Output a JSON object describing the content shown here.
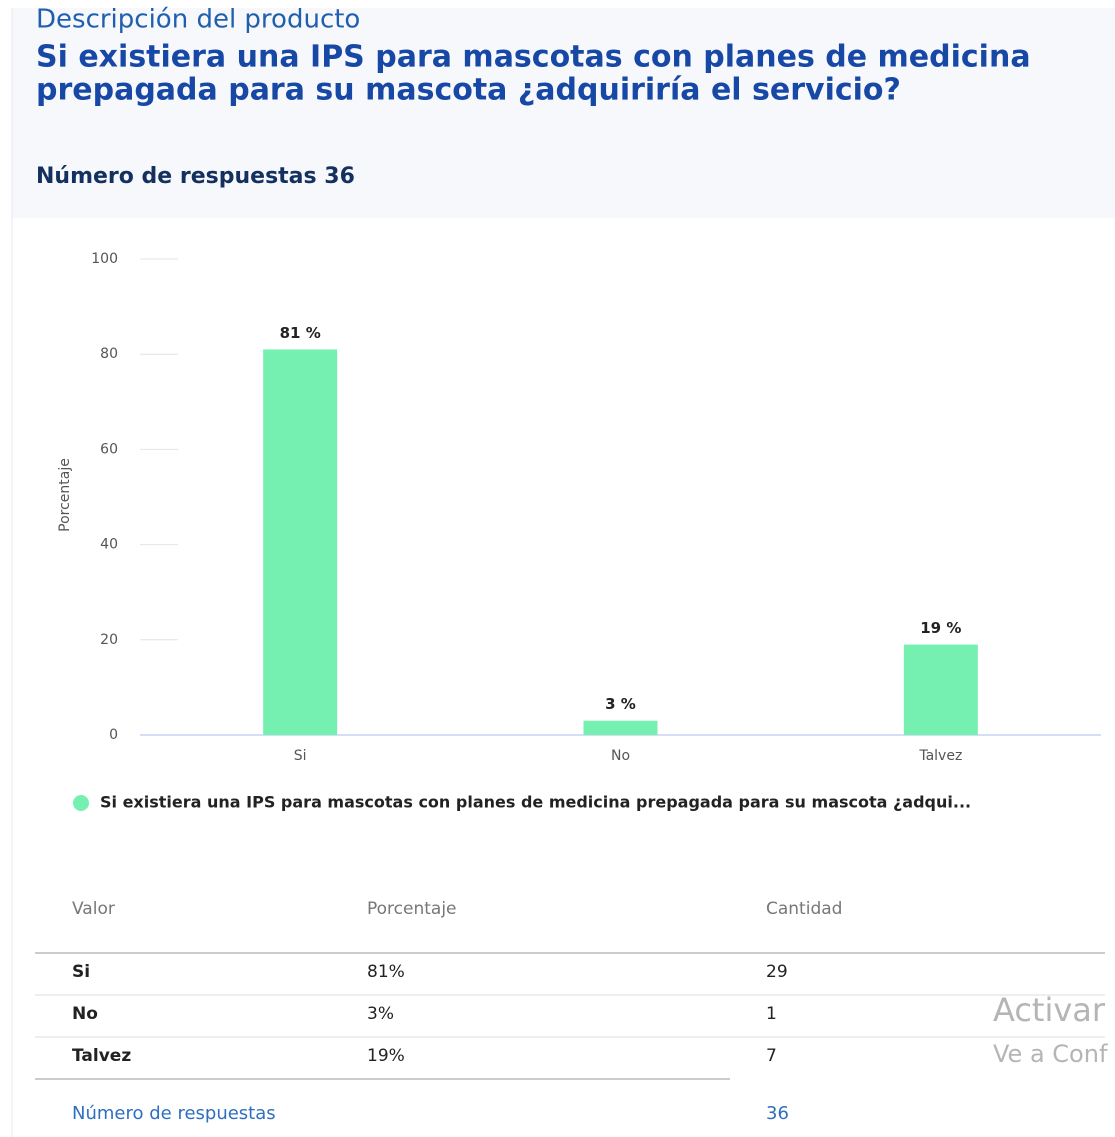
{
  "header": {
    "section": "Descripción del producto",
    "question": [
      "Si existiera una IPS para mascotas con planes de medicina",
      "prepagada para su mascota ¿adquiriría el servicio?"
    ],
    "responses_label": "Número de respuestas",
    "responses_count": 36
  },
  "chart_data": {
    "type": "bar",
    "ylabel": "Porcentaje",
    "categories": [
      "Si",
      "No",
      "Talvez"
    ],
    "series": [
      {
        "name": "Si existiera una IPS para mascotas con planes de medicina prepagada para su mascota ¿adqui...",
        "color": "#76f0b0",
        "values": [
          81,
          3,
          19
        ],
        "value_labels": [
          "81 %",
          "3 %",
          "19 %"
        ]
      }
    ],
    "ylim": [
      0,
      100
    ],
    "yticks": [
      0,
      20,
      40,
      60,
      80,
      100
    ],
    "grid": true
  },
  "table": {
    "headers": [
      "Valor",
      "Porcentaje",
      "Cantidad"
    ],
    "rows": [
      [
        "Si",
        "81%",
        29
      ],
      [
        "No",
        "3%",
        1
      ],
      [
        "Talvez",
        "19%",
        7
      ]
    ],
    "footer": [
      "Número de respuestas",
      36
    ]
  },
  "watermark": [
    "Activar",
    "Ve a Conf"
  ]
}
